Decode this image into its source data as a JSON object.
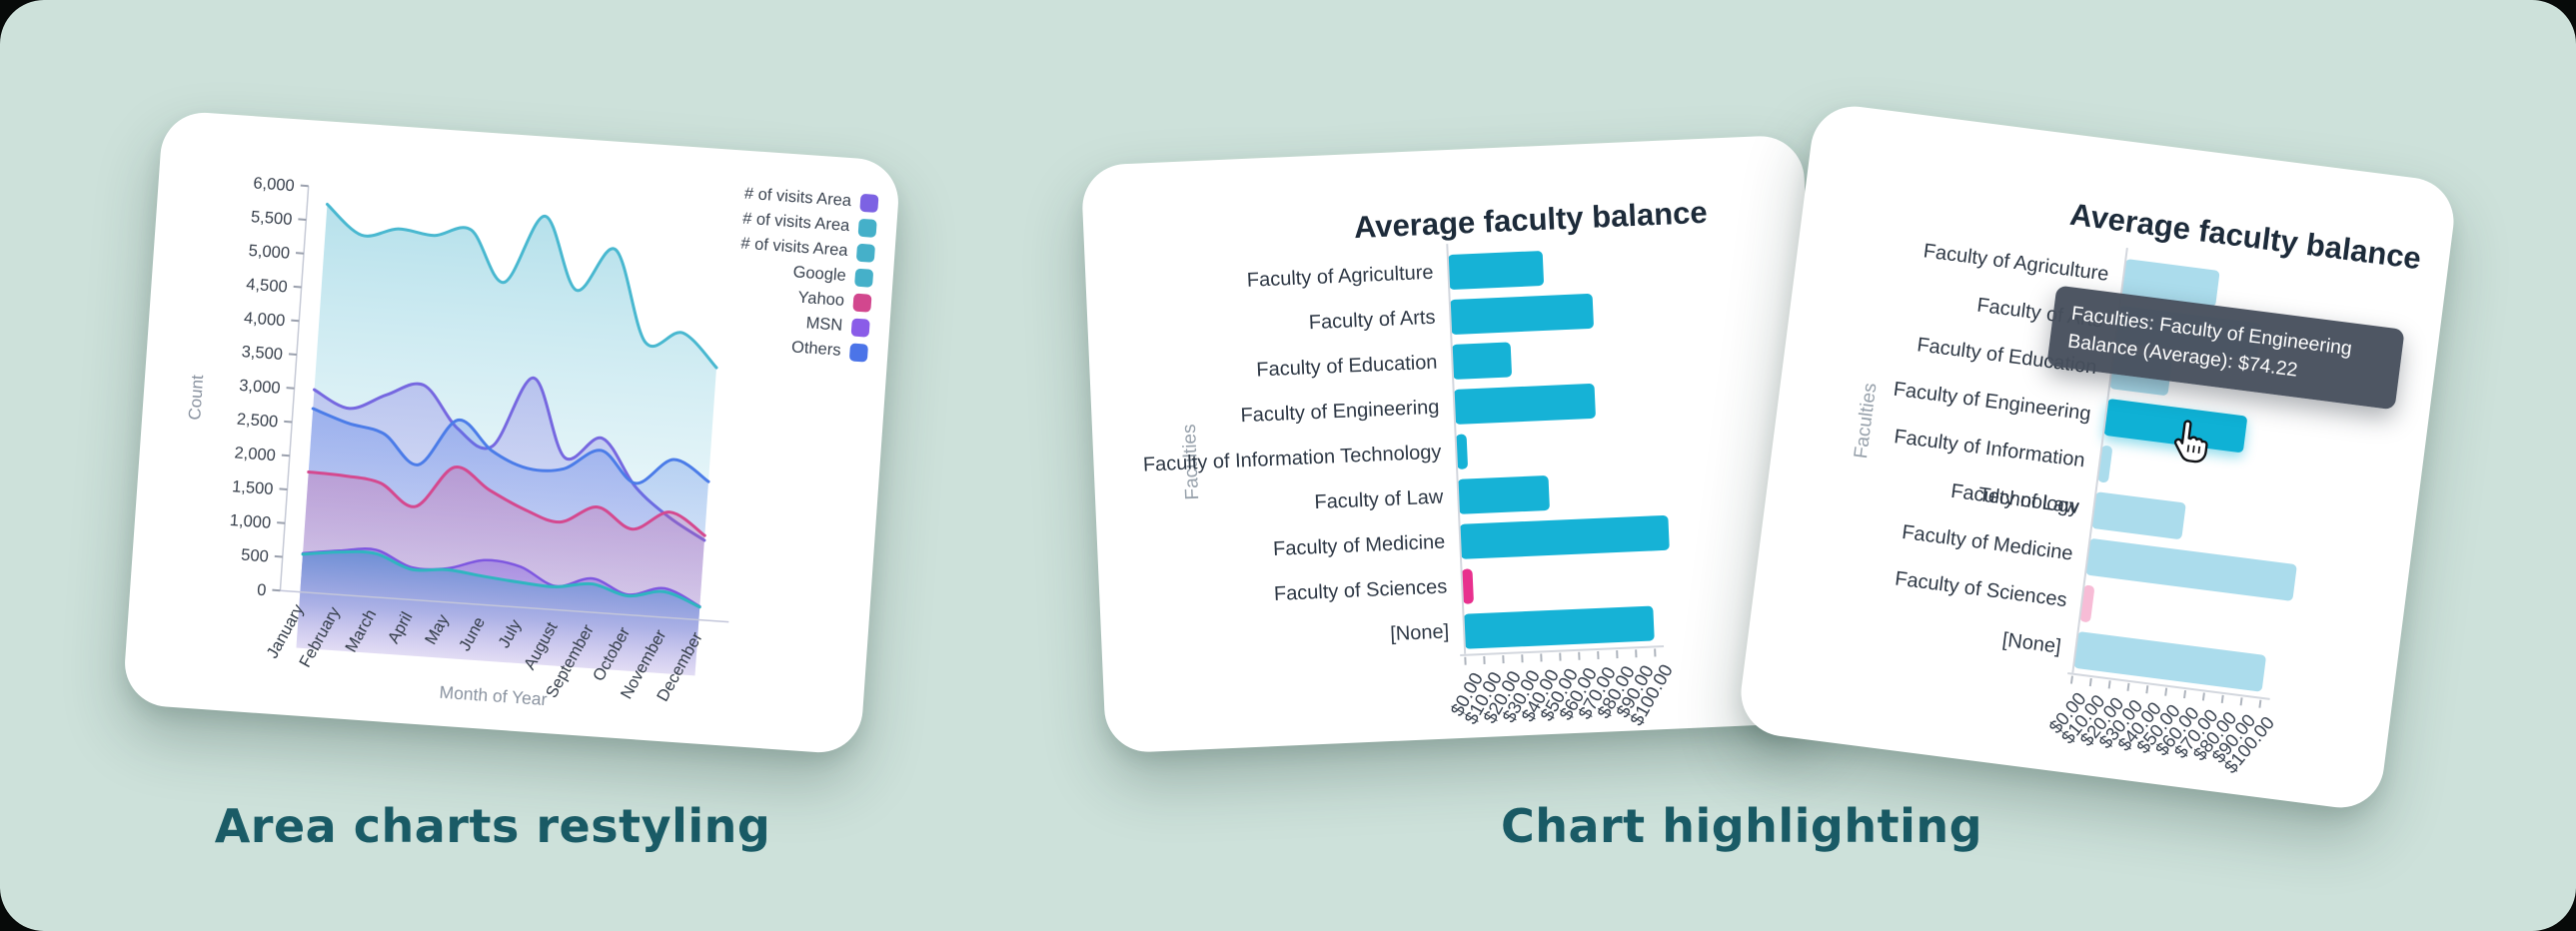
{
  "colors": {
    "background": "#cde1da",
    "card": "#ffffff",
    "caption": "#1a5b66",
    "axis_text": "#39414d",
    "muted_text": "#8a93a0",
    "tooltip_bg": "#474f5d",
    "tooltip_text": "#ffffff"
  },
  "captions": {
    "left": "Area charts restyling",
    "right": "Chart highlighting"
  },
  "chart_data": [
    {
      "type": "area",
      "title": "",
      "xlabel": "Month of Year",
      "ylabel": "Count",
      "x": [
        "January",
        "February",
        "March",
        "April",
        "May",
        "June",
        "July",
        "August",
        "September",
        "October",
        "November",
        "December"
      ],
      "ylim": [
        0,
        6000
      ],
      "ytick_step": 500,
      "ytick_labels": [
        "0",
        "500",
        "1,000",
        "1,500",
        "2,000",
        "2,500",
        "3,000",
        "3,500",
        "4,000",
        "4,500",
        "5,000",
        "5,500",
        "6,000"
      ],
      "grid": false,
      "legend_position": "right",
      "legend": [
        {
          "label": "# of visits Area",
          "color": "#7c62e3"
        },
        {
          "label": "# of visits Area",
          "color": "#45b0c9"
        },
        {
          "label": "# of visits Area",
          "color": "#45b0c9"
        },
        {
          "label": "Google",
          "color": "#45b0c9"
        },
        {
          "label": "Yahoo",
          "color": "#d2478e"
        },
        {
          "label": "MSN",
          "color": "#8a5ce8"
        },
        {
          "label": "Others",
          "color": "#4b74e8"
        }
      ],
      "series": [
        {
          "name": "Google",
          "color": "#49b8d0",
          "width": 3,
          "values": [
            5750,
            5330,
            5460,
            5400,
            5520,
            4780,
            5800,
            4740,
            5380,
            4040,
            4220,
            3740
          ],
          "fill": {
            "y1": 90,
            "y2": 545,
            "stops": [
              [
                0,
                "rgba(171,220,232,0.85)"
              ],
              [
                0.5,
                "rgba(205,235,242,0.6)"
              ],
              [
                1,
                "rgba(240,250,252,0.12)"
              ]
            ]
          }
        },
        {
          "name": "MSN",
          "color": "#7668e0",
          "width": 3,
          "values": [
            3000,
            2760,
            3000,
            3180,
            2580,
            2350,
            3400,
            2260,
            2580,
            1900,
            1480,
            1180
          ],
          "fill": {
            "y1": 180,
            "y2": 545,
            "stops": [
              [
                0,
                "rgba(120,102,226,0.38)"
              ],
              [
                1,
                "rgba(120,102,226,0.03)"
              ]
            ]
          }
        },
        {
          "name": "Others",
          "color": "#4b7ce8",
          "width": 3,
          "values": [
            2720,
            2540,
            2420,
            2000,
            2700,
            2280,
            2060,
            2090,
            2400,
            1950,
            2340,
            2050
          ],
          "fill": {
            "y1": 250,
            "y2": 545,
            "stops": [
              [
                0,
                "rgba(75,120,230,0.35)"
              ],
              [
                1,
                "rgba(75,120,230,0.03)"
              ]
            ]
          }
        },
        {
          "name": "Yahoo",
          "color": "#d4498f",
          "width": 3,
          "values": [
            1780,
            1760,
            1690,
            1380,
            2000,
            1700,
            1450,
            1300,
            1560,
            1270,
            1560,
            1250
          ],
          "fill": {
            "y1": 330,
            "y2": 548,
            "stops": [
              [
                0,
                "rgba(212,73,144,0.30)"
              ],
              [
                1,
                "rgba(212,73,144,0.03)"
              ]
            ]
          }
        },
        {
          "name": "# of visits Area",
          "color": "#7e57e0",
          "width": 2.5,
          "values": [
            575,
            650,
            700,
            480,
            500,
            660,
            600,
            350,
            500,
            300,
            430,
            200
          ],
          "fill": {
            "y1": 420,
            "y2": 540,
            "stops": [
              [
                0,
                "rgba(126,87,224,0.45)"
              ],
              [
                1,
                "rgba(126,87,224,0.04)"
              ]
            ]
          }
        },
        {
          "name": "# of visits Area",
          "color": "#2fb5c0",
          "width": 3,
          "values": [
            560,
            630,
            645,
            450,
            480,
            420,
            370,
            340,
            420,
            280,
            380,
            190
          ],
          "fill": {
            "y1": 420,
            "y2": 548,
            "stops": [
              [
                0,
                "rgba(98,140,210,0.95)"
              ],
              [
                0.5,
                "rgba(140,172,224,0.45)"
              ],
              [
                1,
                "rgba(255,255,255,0)"
              ]
            ]
          }
        }
      ]
    },
    {
      "type": "bar",
      "orientation": "horizontal",
      "title": "Average faculty balance",
      "ylabel": "Faculties",
      "xlabel": "",
      "categories": [
        "Faculty of Agriculture",
        "Faculty of Arts",
        "Faculty of Education",
        "Faculty of Engineering",
        "Faculty of Information Technology",
        "Faculty of Law",
        "Faculty of Medicine",
        "Faculty of Sciences",
        "[None]"
      ],
      "values": [
        50,
        75,
        31,
        74.22,
        6,
        48,
        110,
        6,
        100
      ],
      "bar_colors": [
        "#16b2d6",
        "#16b2d6",
        "#16b2d6",
        "#16b2d6",
        "#16b2d6",
        "#16b2d6",
        "#16b2d6",
        "#e8318e",
        "#16b2d6"
      ],
      "xlim": [
        0,
        100
      ],
      "xtick_labels": [
        "$0.00",
        "$10.00",
        "$20.00",
        "$30.00",
        "$40.00",
        "$50.00",
        "$60.00",
        "$70.00",
        "$80.00",
        "$90.00",
        "$100.00"
      ]
    },
    {
      "type": "bar",
      "orientation": "horizontal",
      "title": "Average faculty balance",
      "ylabel": "Faculties",
      "xlabel": "",
      "categories": [
        "Faculty of Agriculture",
        "Faculty of Arts",
        "Faculty of Education",
        "Faculty of Engineering",
        "Faculty of Information Technology",
        "Faculty of Law",
        "Faculty of Medicine",
        "Faculty of Sciences",
        "[None]"
      ],
      "values": [
        50,
        75,
        31,
        74.22,
        6,
        48,
        110,
        6,
        100
      ],
      "bar_colors": [
        "#abdcec",
        "#abdcec",
        "#abdcec",
        "#0fb1d5",
        "#abdcec",
        "#abdcec",
        "#abdcec",
        "#f7bcd6",
        "#abdcec"
      ],
      "highlighted_index": 3,
      "xlim": [
        0,
        100
      ],
      "xtick_labels": [
        "$0.00",
        "$10.00",
        "$20.00",
        "$30.00",
        "$40.00",
        "$50.00",
        "$60.00",
        "$70.00",
        "$80.00",
        "$90.00",
        "$100.00"
      ],
      "tooltip": {
        "line1": "Faculties: Faculty of Engineering",
        "line2": "Balance (Average): $74.22"
      },
      "cursor": "hand-pointer"
    }
  ]
}
